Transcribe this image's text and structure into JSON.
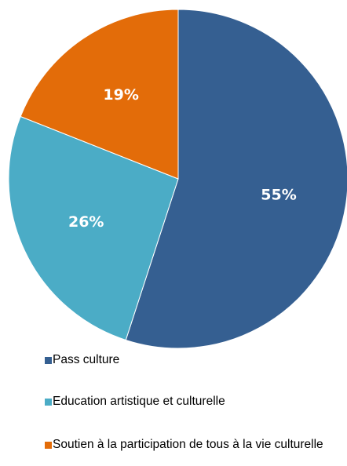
{
  "chart_data": {
    "type": "pie",
    "title": "",
    "slices": [
      {
        "label": "Pass culture",
        "value": 55,
        "display": "55%",
        "color": "#355F91"
      },
      {
        "label": "Education artistique et culturelle",
        "value": 26,
        "display": "26%",
        "color": "#4BACC6"
      },
      {
        "label": "Soutien à la participation de tous à la vie culturelle",
        "value": 19,
        "display": "19%",
        "color": "#E36C09"
      }
    ],
    "legend_position": "bottom",
    "start": "12 o'clock, clockwise"
  }
}
